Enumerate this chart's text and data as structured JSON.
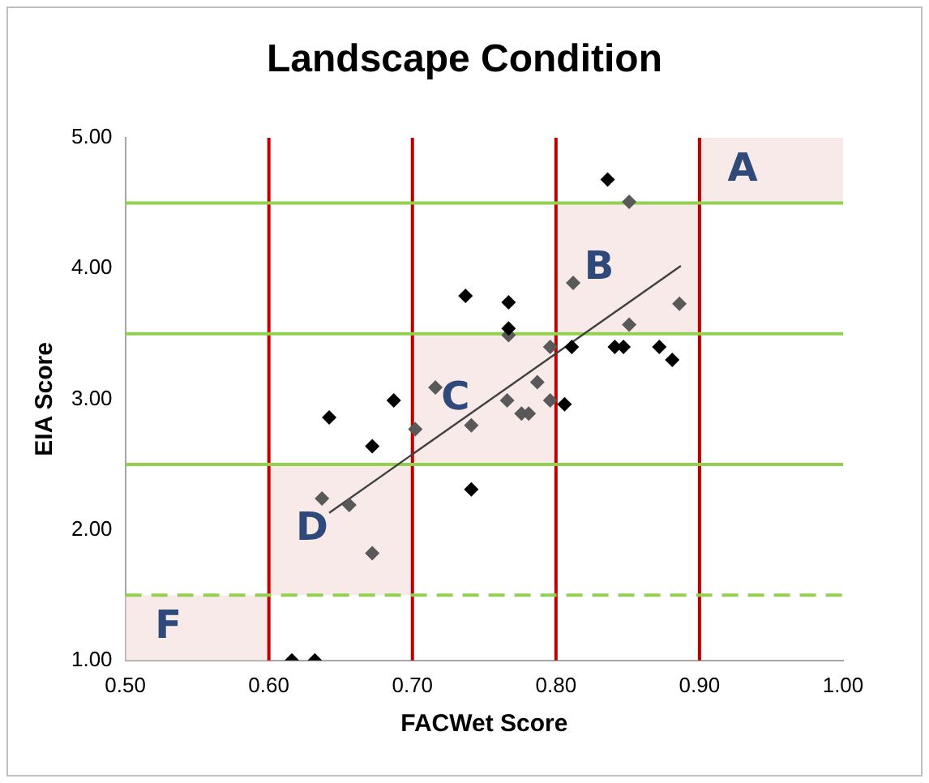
{
  "chart_data": {
    "type": "scatter",
    "title": "Landscape Condition",
    "xlabel": "FACWet Score",
    "ylabel": "EIA Score",
    "xlim": [
      0.5,
      1.0
    ],
    "xticks": [
      {
        "value": 0.5,
        "label": "0.50"
      },
      {
        "value": 0.6,
        "label": "0.60"
      },
      {
        "value": 0.7,
        "label": "0.70"
      },
      {
        "value": 0.8,
        "label": "0.80"
      },
      {
        "value": 0.9,
        "label": "0.90"
      },
      {
        "value": 1.0,
        "label": "1.00"
      }
    ],
    "ylim": [
      1.0,
      5.0
    ],
    "yticks": [
      {
        "value": 1,
        "label": "1.00"
      },
      {
        "value": 2,
        "label": "2.00"
      },
      {
        "value": 3,
        "label": "3.00"
      },
      {
        "value": 4,
        "label": "4.00"
      },
      {
        "value": 5,
        "label": "5.00"
      }
    ],
    "grid": false,
    "legend": false,
    "series": [
      {
        "type": "scatter",
        "marker": "diamond",
        "color": "#000000",
        "x": [
          0.836,
          0.737,
          0.767,
          0.767,
          0.811,
          0.841,
          0.847,
          0.872,
          0.881,
          0.806,
          0.687,
          0.642,
          0.672,
          0.741,
          0.616,
          0.632
        ],
        "values": [
          4.68,
          3.79,
          3.74,
          3.54,
          3.4,
          3.4,
          3.4,
          3.4,
          3.3,
          2.96,
          2.99,
          2.86,
          2.64,
          2.31,
          1.0,
          1.0
        ]
      },
      {
        "type": "scatter",
        "marker": "diamond",
        "color": "#595959",
        "x": [
          0.851,
          0.812,
          0.886,
          0.851,
          0.796,
          0.767,
          0.716,
          0.787,
          0.766,
          0.796,
          0.776,
          0.781,
          0.741,
          0.702,
          0.656,
          0.637,
          0.672
        ],
        "values": [
          4.51,
          3.89,
          3.73,
          3.57,
          3.4,
          3.49,
          3.09,
          3.13,
          2.99,
          2.99,
          2.89,
          2.89,
          2.8,
          2.77,
          2.19,
          2.24,
          1.82
        ]
      },
      {
        "type": "line",
        "marker": "none",
        "color": "#404040",
        "x": [
          0.642,
          0.887
        ],
        "values": [
          2.13,
          4.02
        ]
      }
    ],
    "ref_lines": [
      {
        "axis": "x",
        "value": 0.6,
        "color": "#c00000"
      },
      {
        "axis": "x",
        "value": 0.7,
        "color": "#c00000"
      },
      {
        "axis": "x",
        "value": 0.8,
        "color": "#c00000"
      },
      {
        "axis": "x",
        "value": 0.9,
        "color": "#c00000"
      },
      {
        "axis": "y",
        "value": 4.5,
        "color": "#92d050"
      },
      {
        "axis": "y",
        "value": 3.5,
        "color": "#92d050"
      },
      {
        "axis": "y",
        "value": 2.5,
        "color": "#92d050"
      },
      {
        "axis": "y",
        "value": 1.5,
        "color": "#92d050",
        "line_style": "dashed"
      }
    ],
    "bands": [
      {
        "axis": "x",
        "from": 0.5,
        "to": 0.6,
        "label": "F",
        "color": "#f2dcdb"
      },
      {
        "axis": "x",
        "from": 0.6,
        "to": 0.7,
        "label": "D",
        "color": "#f2dcdb"
      },
      {
        "axis": "x",
        "from": 0.7,
        "to": 0.8,
        "label": "C",
        "color": "#f2dcdb"
      },
      {
        "axis": "x",
        "from": 0.8,
        "to": 0.9,
        "label": "B",
        "color": "#f2dcdb"
      },
      {
        "axis": "x",
        "from": 0.9,
        "to": 1.0,
        "label": "A",
        "color": "#f2dcdb"
      }
    ]
  }
}
